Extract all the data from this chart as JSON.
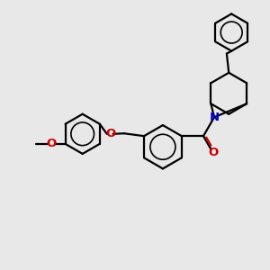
{
  "background_color": "#e8e8e8",
  "line_color": "#000000",
  "bond_width": 1.6,
  "N_color": "#0000cc",
  "O_color": "#cc0000",
  "figsize": [
    3.0,
    3.0
  ],
  "dpi": 100,
  "xlim": [
    0,
    10
  ],
  "ylim": [
    0,
    10
  ]
}
